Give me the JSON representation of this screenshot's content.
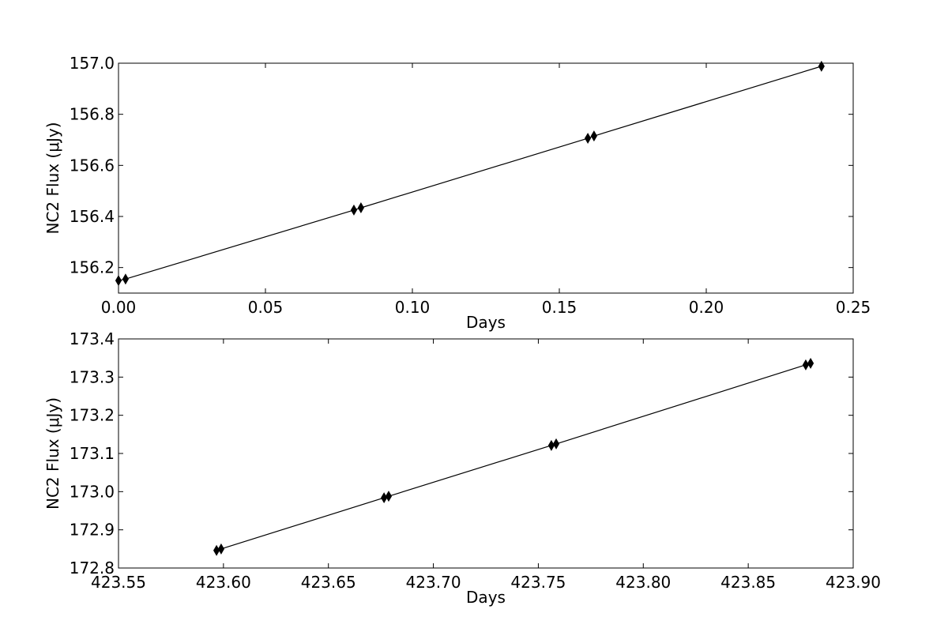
{
  "chart_data": [
    {
      "type": "line",
      "xlabel": "Days",
      "ylabel": "NC2 Flux (μJy)",
      "x": [
        0.0,
        0.0024,
        0.0801,
        0.0825,
        0.1597,
        0.1618,
        0.2392
      ],
      "series": [
        {
          "color": "#000000",
          "values": [
            156.149,
            156.155,
            156.425,
            156.434,
            156.706,
            156.715,
            156.988
          ]
        }
      ],
      "xlim": [
        0,
        0.25
      ],
      "xticks": [
        {
          "value": 0,
          "label": "0.00"
        },
        0.05,
        {
          "value": 0.1,
          "label": "0.10"
        },
        0.15,
        {
          "value": 0.2,
          "label": "0.20"
        },
        0.25
      ],
      "ylim": [
        156.1,
        157
      ],
      "yticks": [
        156.2,
        156.4,
        156.6,
        156.8,
        {
          "value": 157,
          "label": "157.0"
        }
      ]
    },
    {
      "type": "line",
      "xlabel": "Days",
      "ylabel": "NC2 Flux (μJy)",
      "x": [
        423.5967,
        423.5989,
        423.6765,
        423.6787,
        423.7562,
        423.7585,
        423.8774,
        423.8797
      ],
      "series": [
        {
          "color": "#000000",
          "values": [
            172.846,
            172.85,
            172.984,
            172.988,
            173.121,
            173.125,
            173.332,
            173.336
          ]
        }
      ],
      "xlim": [
        423.55,
        423.9
      ],
      "xticks": [
        423.55,
        {
          "value": 423.6,
          "label": "423.60"
        },
        423.65,
        {
          "value": 423.7,
          "label": "423.70"
        },
        423.75,
        {
          "value": 423.8,
          "label": "423.80"
        },
        423.85,
        {
          "value": 423.9,
          "label": "423.90"
        }
      ],
      "ylim": [
        172.8,
        173.4
      ],
      "yticks": [
        172.8,
        172.9,
        {
          "value": 173,
          "label": "173.0"
        },
        173.1,
        173.2,
        173.3,
        173.4
      ]
    }
  ]
}
